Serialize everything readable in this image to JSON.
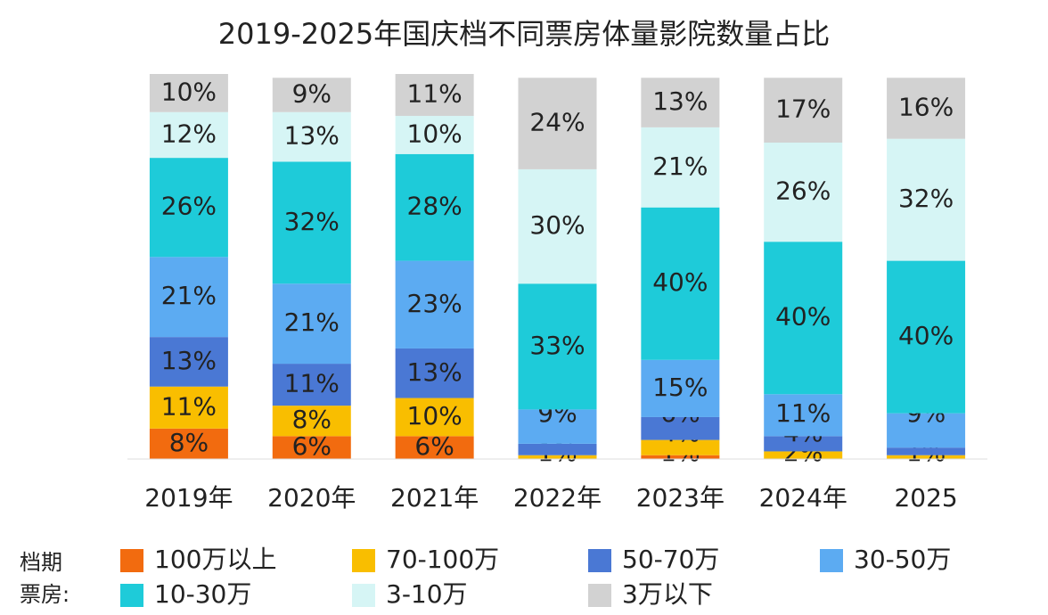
{
  "chart_data": {
    "type": "stacked_bar",
    "title": "2019-2025年国庆档不同票房体量影院数量占比",
    "legend_title": [
      "档期",
      "票房:"
    ],
    "categories": [
      "2019年",
      "2020年",
      "2021年",
      "2022年",
      "2023年",
      "2024年",
      "2025"
    ],
    "ylim": [
      0,
      101
    ],
    "series": [
      {
        "name": "100万以上",
        "color": "#f26b0f",
        "values": [
          8,
          6,
          6,
          0,
          1,
          0,
          0
        ],
        "value_labels": [
          "8%",
          "6%",
          "6%",
          null,
          "1%",
          null,
          null
        ]
      },
      {
        "name": "70-100万",
        "color": "#f9be00",
        "values": [
          11,
          8,
          10,
          1,
          4,
          2,
          1
        ],
        "value_labels": [
          "11%",
          "8%",
          "10%",
          "1%",
          "4%",
          "2%",
          "1%"
        ]
      },
      {
        "name": "50-70万",
        "color": "#4a78d4",
        "values": [
          13,
          11,
          13,
          3,
          6,
          4,
          2
        ],
        "value_labels": [
          "13%",
          "11%",
          "13%",
          "3%",
          "6%",
          "4%",
          "2%"
        ]
      },
      {
        "name": "30-50万",
        "color": "#5cabf2",
        "values": [
          21,
          21,
          23,
          9,
          15,
          11,
          9
        ],
        "value_labels": [
          "21%",
          "21%",
          "23%",
          "9%",
          "15%",
          "11%",
          "9%"
        ]
      },
      {
        "name": "10-30万",
        "color": "#1ecbd9",
        "values": [
          26,
          32,
          28,
          33,
          40,
          40,
          40
        ],
        "value_labels": [
          "26%",
          "32%",
          "28%",
          "33%",
          "40%",
          "40%",
          "40%"
        ]
      },
      {
        "name": "3-10万",
        "color": "#d6f5f5",
        "values": [
          12,
          13,
          10,
          30,
          21,
          26,
          32
        ],
        "value_labels": [
          "12%",
          "13%",
          "10%",
          "30%",
          "21%",
          "26%",
          "32%"
        ]
      },
      {
        "name": "3万以下",
        "color": "#d2d2d2",
        "values": [
          10,
          9,
          11,
          24,
          13,
          17,
          16
        ],
        "value_labels": [
          "10%",
          "9%",
          "11%",
          "24%",
          "13%",
          "17%",
          "16%"
        ]
      }
    ]
  }
}
